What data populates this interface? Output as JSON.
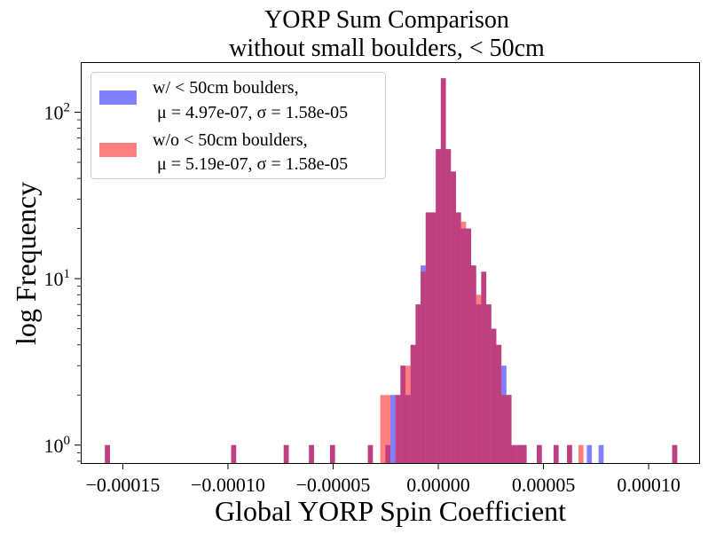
{
  "chart_data": {
    "type": "bar",
    "subtype": "overlaid-histogram",
    "title_line1": "YORP Sum Comparison",
    "title_line2": "without small boulders, < 50cm",
    "xlabel": "Global YORP Spin Coefficient",
    "ylabel": "log Frequency",
    "y_scale": "log",
    "xlim": [
      -0.00017,
      0.000124
    ],
    "ylim": [
      0.78,
      200
    ],
    "x_ticks": [
      {
        "value": -0.00015,
        "label": "−0.00015"
      },
      {
        "value": -0.0001,
        "label": "−0.00010"
      },
      {
        "value": -5e-05,
        "label": "−0.00005"
      },
      {
        "value": 0.0,
        "label": "0.00000"
      },
      {
        "value": 5e-05,
        "label": "0.00005"
      },
      {
        "value": 0.0001,
        "label": "0.00010"
      }
    ],
    "y_ticks": [
      {
        "value": 1,
        "base": "10",
        "exp": "0"
      },
      {
        "value": 10,
        "base": "10",
        "exp": "1"
      },
      {
        "value": 100,
        "base": "10",
        "exp": "2"
      }
    ],
    "legend_position": "upper-left",
    "series": [
      {
        "name": "w/ < 50cm boulders,",
        "name_line2": " μ = 4.97e-07, σ = 1.58e-05",
        "color": "#0000ff",
        "opacity": 0.5,
        "bin_width": 2.4e-06,
        "bins": [
          [
            -0.0001585,
            1
          ],
          [
            -9.85e-05,
            1
          ],
          [
            -7.35e-05,
            1
          ],
          [
            -6.15e-05,
            1
          ],
          [
            -5.15e-05,
            1
          ],
          [
            -3.35e-05,
            1
          ],
          [
            -2.52e-05,
            1
          ],
          [
            -2.28e-05,
            2
          ],
          [
            -2.04e-05,
            2
          ],
          [
            -1.8e-05,
            3
          ],
          [
            -1.56e-05,
            2
          ],
          [
            -1.32e-05,
            4
          ],
          [
            -1.08e-05,
            7
          ],
          [
            -8.4e-06,
            12
          ],
          [
            -6e-06,
            25
          ],
          [
            -3.6e-06,
            25
          ],
          [
            -1.2e-06,
            60
          ],
          [
            1.2e-06,
            160
          ],
          [
            3.6e-06,
            60
          ],
          [
            6e-06,
            44
          ],
          [
            8.4e-06,
            25
          ],
          [
            1.08e-05,
            20
          ],
          [
            1.32e-05,
            20
          ],
          [
            1.56e-05,
            12
          ],
          [
            1.8e-05,
            7
          ],
          [
            2.04e-05,
            11
          ],
          [
            2.28e-05,
            7
          ],
          [
            2.52e-05,
            5
          ],
          [
            2.76e-05,
            4
          ],
          [
            3e-05,
            3
          ],
          [
            3.24e-05,
            2
          ],
          [
            3.48e-05,
            1
          ],
          [
            3.72e-05,
            1
          ],
          [
            3.96e-05,
            1
          ],
          [
            4.68e-05,
            1
          ],
          [
            5.48e-05,
            1
          ],
          [
            6.12e-05,
            1
          ],
          [
            7.06e-05,
            1
          ],
          [
            7.62e-05,
            1
          ],
          [
            0.0001112,
            1
          ]
        ]
      },
      {
        "name": "w/o < 50cm boulders,",
        "name_line2": " μ = 5.19e-07, σ = 1.58e-05",
        "color": "#ff0000",
        "opacity": 0.5,
        "bin_width": 2.4e-06,
        "bins": [
          [
            -0.0001585,
            1
          ],
          [
            -9.85e-05,
            1
          ],
          [
            -7.35e-05,
            1
          ],
          [
            -6.15e-05,
            1
          ],
          [
            -5.15e-05,
            1
          ],
          [
            -3.35e-05,
            1
          ],
          [
            -2.76e-05,
            2
          ],
          [
            -2.52e-05,
            2
          ],
          [
            -2.04e-05,
            2
          ],
          [
            -1.8e-05,
            3
          ],
          [
            -1.56e-05,
            3
          ],
          [
            -1.32e-05,
            4
          ],
          [
            -1.08e-05,
            7
          ],
          [
            -8.4e-06,
            11
          ],
          [
            -6e-06,
            25
          ],
          [
            -3.6e-06,
            25
          ],
          [
            -1.2e-06,
            60
          ],
          [
            1.2e-06,
            160
          ],
          [
            3.6e-06,
            60
          ],
          [
            6e-06,
            44
          ],
          [
            8.4e-06,
            25
          ],
          [
            1.08e-05,
            22
          ],
          [
            1.32e-05,
            20
          ],
          [
            1.56e-05,
            12
          ],
          [
            1.8e-05,
            8
          ],
          [
            2.04e-05,
            11
          ],
          [
            2.28e-05,
            7
          ],
          [
            2.52e-05,
            5
          ],
          [
            2.76e-05,
            4
          ],
          [
            3e-05,
            2
          ],
          [
            3.24e-05,
            2
          ],
          [
            3.48e-05,
            1
          ],
          [
            3.72e-05,
            1
          ],
          [
            3.96e-05,
            1
          ],
          [
            4.68e-05,
            1
          ],
          [
            5.48e-05,
            1
          ],
          [
            6.12e-05,
            1
          ],
          [
            6.66e-05,
            1
          ],
          [
            0.0001112,
            1
          ]
        ]
      }
    ]
  }
}
